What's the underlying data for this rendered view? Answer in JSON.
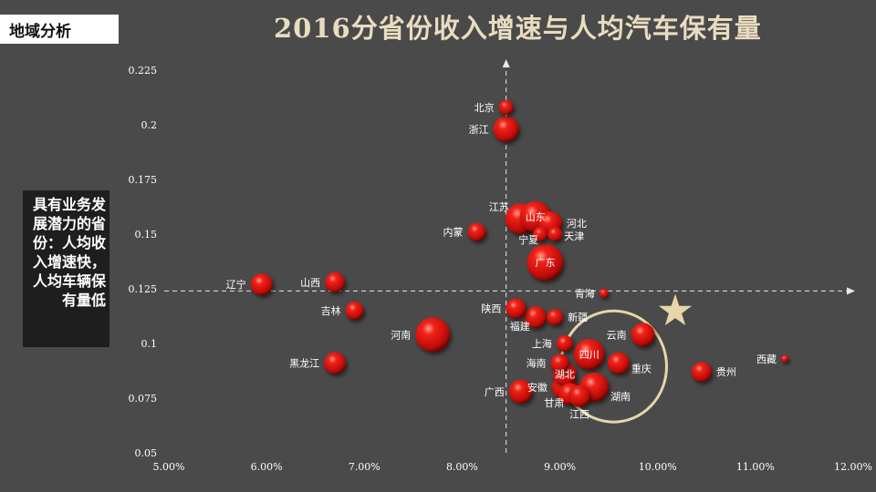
{
  "tag": "地域分析",
  "note": "具有业务发展潜力的省份：人均收入增速快，人均车辆保有量低",
  "colors": {
    "background": "#4a4a4a",
    "bubble": "#d8120d",
    "highlight": "#e6d6a8",
    "title": "#e9dcc0"
  },
  "chart_data": {
    "type": "scatter",
    "title": "2016分省份收入增速与人均汽车保有量",
    "xlabel": "",
    "ylabel": "",
    "xlim": [
      0.05,
      0.12
    ],
    "ylim": [
      0.05,
      0.225
    ],
    "x_ticks": [
      "5.00%",
      "6.00%",
      "7.00%",
      "8.00%",
      "9.00%",
      "10.00%",
      "11.00%",
      "12.00%"
    ],
    "y_ticks": [
      "0.05",
      "0.075",
      "0.1",
      "0.125",
      "0.15",
      "0.175",
      "0.2",
      "0.225"
    ],
    "reference_lines": {
      "x": 0.0845,
      "y": 0.124
    },
    "points": [
      {
        "name": "北京",
        "x": 0.0845,
        "y": 0.208,
        "r": 8,
        "label_pos": "left"
      },
      {
        "name": "浙江",
        "x": 0.0845,
        "y": 0.198,
        "r": 14,
        "label_pos": "left"
      },
      {
        "name": "江苏",
        "x": 0.086,
        "y": 0.157,
        "r": 17,
        "label_pos": "left-up"
      },
      {
        "name": "山东",
        "x": 0.0875,
        "y": 0.158,
        "r": 17,
        "label_pos": "center"
      },
      {
        "name": "河北",
        "x": 0.089,
        "y": 0.155,
        "r": 13,
        "label_pos": "right"
      },
      {
        "name": "内蒙",
        "x": 0.0815,
        "y": 0.151,
        "r": 10,
        "label_pos": "left"
      },
      {
        "name": "宁夏",
        "x": 0.088,
        "y": 0.15,
        "r": 8,
        "label_pos": "left-down"
      },
      {
        "name": "天津",
        "x": 0.0895,
        "y": 0.15,
        "r": 8,
        "label_pos": "right-down"
      },
      {
        "name": "广东",
        "x": 0.0885,
        "y": 0.137,
        "r": 20,
        "label_pos": "center"
      },
      {
        "name": "青海",
        "x": 0.0945,
        "y": 0.123,
        "r": 5,
        "label_pos": "left"
      },
      {
        "name": "辽宁",
        "x": 0.0595,
        "y": 0.127,
        "r": 12,
        "label_pos": "left"
      },
      {
        "name": "山西",
        "x": 0.067,
        "y": 0.128,
        "r": 11,
        "label_pos": "left"
      },
      {
        "name": "吉林",
        "x": 0.069,
        "y": 0.115,
        "r": 10,
        "label_pos": "left"
      },
      {
        "name": "陕西",
        "x": 0.0855,
        "y": 0.116,
        "r": 11,
        "label_pos": "left"
      },
      {
        "name": "福建",
        "x": 0.0875,
        "y": 0.112,
        "r": 12,
        "label_pos": "left-down"
      },
      {
        "name": "新疆",
        "x": 0.0895,
        "y": 0.112,
        "r": 9,
        "label_pos": "right"
      },
      {
        "name": "河南",
        "x": 0.077,
        "y": 0.104,
        "r": 19,
        "label_pos": "left"
      },
      {
        "name": "上海",
        "x": 0.0905,
        "y": 0.1,
        "r": 9,
        "label_pos": "left"
      },
      {
        "name": "四川",
        "x": 0.093,
        "y": 0.095,
        "r": 17,
        "label_pos": "center"
      },
      {
        "name": "云南",
        "x": 0.0985,
        "y": 0.104,
        "r": 13,
        "label_pos": "left"
      },
      {
        "name": "西藏",
        "x": 0.113,
        "y": 0.093,
        "r": 4,
        "label_pos": "left"
      },
      {
        "name": "黑龙江",
        "x": 0.067,
        "y": 0.091,
        "r": 12,
        "label_pos": "left"
      },
      {
        "name": "海南",
        "x": 0.09,
        "y": 0.091,
        "r": 10,
        "label_pos": "left"
      },
      {
        "name": "重庆",
        "x": 0.096,
        "y": 0.091,
        "r": 12,
        "label_pos": "right-down"
      },
      {
        "name": "贵州",
        "x": 0.1045,
        "y": 0.087,
        "r": 11,
        "label_pos": "right"
      },
      {
        "name": "湖北",
        "x": 0.0905,
        "y": 0.086,
        "r": 13,
        "label_pos": "center"
      },
      {
        "name": "安徽",
        "x": 0.0905,
        "y": 0.08,
        "r": 14,
        "label_pos": "left"
      },
      {
        "name": "湖南",
        "x": 0.0935,
        "y": 0.08,
        "r": 16,
        "label_pos": "right-down"
      },
      {
        "name": "广西",
        "x": 0.086,
        "y": 0.078,
        "r": 13,
        "label_pos": "left"
      },
      {
        "name": "甘肃",
        "x": 0.091,
        "y": 0.077,
        "r": 12,
        "label_pos": "left-down"
      },
      {
        "name": "江西",
        "x": 0.092,
        "y": 0.076,
        "r": 12,
        "label_pos": "down"
      }
    ]
  }
}
